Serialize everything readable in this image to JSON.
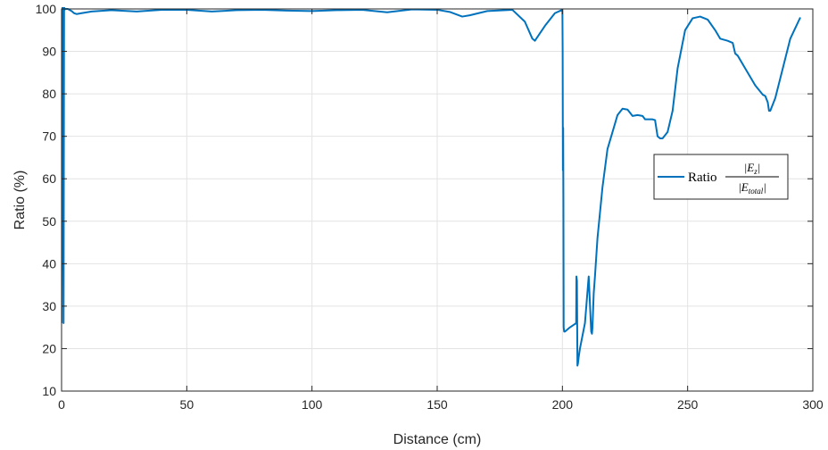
{
  "chart_data": {
    "type": "line",
    "xlabel": "Distance (cm)",
    "ylabel": "Ratio (%)",
    "xlim": [
      0,
      300
    ],
    "ylim": [
      10,
      100
    ],
    "grid": true,
    "legend_placement": "right",
    "xticks": [
      "0",
      "50",
      "100",
      "150",
      "200",
      "250",
      "300"
    ],
    "yticks": [
      "10",
      "20",
      "30",
      "40",
      "50",
      "60",
      "70",
      "80",
      "90",
      "100"
    ],
    "colors": {
      "series": "#0072BD",
      "grid": "#e3e3e3",
      "axis": "#262626"
    },
    "legend": {
      "prefix": "Ratio",
      "numerator": "|E",
      "numerator_sub": "z",
      "denominator": "|E",
      "denominator_sub": "total"
    },
    "series": [
      {
        "x": [
          0,
          0.3,
          0.6,
          0.8,
          1.0,
          1.2,
          1.4,
          1.7,
          2.5,
          4,
          5,
          6,
          8,
          12,
          20,
          30,
          40,
          50,
          60,
          70,
          80,
          90,
          100,
          110,
          120,
          130,
          140,
          150,
          155,
          160,
          163,
          170,
          180,
          185,
          188,
          189,
          193,
          197,
          200,
          200.1,
          200.2,
          200.3,
          200.4,
          200.5,
          200.7,
          201,
          203,
          205.5,
          205.6,
          205.8,
          206,
          206.2,
          206.5,
          207,
          209,
          210.5,
          211.5,
          211.8,
          212,
          212.5,
          213,
          214,
          216,
          218,
          220,
          222,
          224,
          226,
          228,
          230,
          232,
          233,
          236,
          237,
          238,
          239,
          240,
          242,
          244,
          246,
          249,
          252,
          255,
          258,
          261,
          263,
          266,
          268,
          269,
          270,
          273,
          277,
          280,
          281,
          282,
          282.5,
          283,
          285,
          288,
          291,
          295
        ],
        "y": [
          26,
          100.5,
          100,
          26,
          100.5,
          99.8,
          100,
          100,
          100,
          99.5,
          99,
          98.8,
          99,
          99.4,
          99.7,
          99.4,
          99.8,
          99.8,
          99.4,
          99.7,
          99.8,
          99.6,
          99.5,
          99.7,
          99.8,
          99.2,
          99.9,
          99.8,
          99.3,
          98.2,
          98.5,
          99.5,
          99.8,
          97,
          93,
          92.5,
          96,
          99,
          99.8,
          90,
          62,
          72,
          55,
          25,
          24,
          24,
          25,
          26,
          37,
          36,
          16,
          16.5,
          18,
          20,
          26,
          37,
          24,
          23.5,
          25,
          33,
          37,
          46,
          58,
          67,
          71,
          75,
          76.5,
          76.3,
          74.8,
          75,
          74.8,
          74,
          74,
          73.8,
          70,
          69.5,
          69.5,
          71,
          76,
          86,
          95,
          97.8,
          98.2,
          97.5,
          95,
          93,
          92.5,
          92,
          89.5,
          89,
          86,
          82,
          79.8,
          79.5,
          78,
          76,
          76,
          79,
          86,
          93,
          98
        ]
      }
    ]
  }
}
